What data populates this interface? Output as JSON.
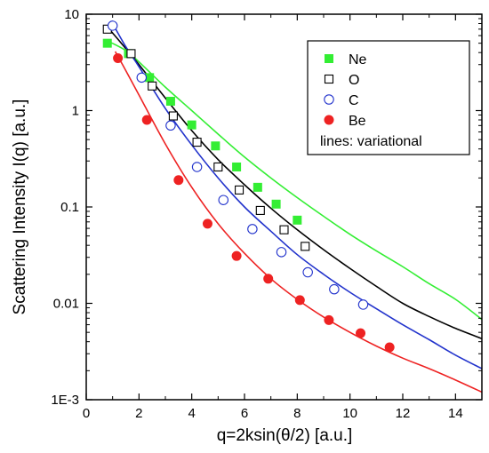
{
  "chart_data": {
    "type": "scatter",
    "xlabel": "q=2ksin(θ/2) [a.u.]",
    "ylabel": "Scattering Intensity I(q)  [a.u.]",
    "xlim": [
      0,
      15
    ],
    "ylim": [
      0.001,
      10
    ],
    "yscale": "log",
    "grid": false,
    "legend_position": "top-right",
    "x_ticks": [
      {
        "value": 0,
        "label": "0"
      },
      {
        "value": 2,
        "label": "2"
      },
      {
        "value": 4,
        "label": "4"
      },
      {
        "value": 6,
        "label": "6"
      },
      {
        "value": 8,
        "label": "8"
      },
      {
        "value": 10,
        "label": "10"
      },
      {
        "value": 12,
        "label": "12"
      },
      {
        "value": 14,
        "label": "14"
      }
    ],
    "y_ticks": [
      {
        "value": 0.001,
        "label": "1E-3"
      },
      {
        "value": 0.01,
        "label": "0.01"
      },
      {
        "value": 0.1,
        "label": "0.1"
      },
      {
        "value": 1,
        "label": "1"
      },
      {
        "value": 10,
        "label": "10"
      }
    ],
    "legend_note": "lines: variational",
    "series": [
      {
        "name": "Ne",
        "marker": "filled-square",
        "color": "#33ee33",
        "points": [
          [
            0.8,
            5.0
          ],
          [
            1.6,
            3.9
          ],
          [
            2.4,
            2.2
          ],
          [
            3.2,
            1.25
          ],
          [
            4.0,
            0.71
          ],
          [
            4.9,
            0.43
          ],
          [
            5.7,
            0.26
          ],
          [
            6.5,
            0.16
          ],
          [
            7.2,
            0.107
          ],
          [
            8.0,
            0.073
          ]
        ],
        "curve": [
          [
            0.8,
            5.3
          ],
          [
            1.5,
            4.2
          ],
          [
            2,
            3.2
          ],
          [
            3,
            1.75
          ],
          [
            4,
            1.0
          ],
          [
            5,
            0.57
          ],
          [
            6,
            0.33
          ],
          [
            7,
            0.2
          ],
          [
            8,
            0.125
          ],
          [
            9,
            0.08
          ],
          [
            10,
            0.052
          ],
          [
            11,
            0.035
          ],
          [
            12,
            0.024
          ],
          [
            13,
            0.016
          ],
          [
            14,
            0.011
          ],
          [
            15,
            0.0068
          ]
        ]
      },
      {
        "name": "O",
        "marker": "open-square",
        "color": "#000000",
        "points": [
          [
            0.8,
            7.0
          ],
          [
            1.7,
            3.9
          ],
          [
            2.5,
            1.8
          ],
          [
            3.3,
            0.88
          ],
          [
            4.2,
            0.47
          ],
          [
            5.0,
            0.26
          ],
          [
            5.8,
            0.15
          ],
          [
            6.6,
            0.092
          ],
          [
            7.5,
            0.058
          ],
          [
            8.3,
            0.039
          ]
        ],
        "curve": [
          [
            0.8,
            7.4
          ],
          [
            1.5,
            4.4
          ],
          [
            2,
            3.0
          ],
          [
            3,
            1.35
          ],
          [
            4,
            0.62
          ],
          [
            5,
            0.31
          ],
          [
            6,
            0.17
          ],
          [
            7,
            0.097
          ],
          [
            8,
            0.058
          ],
          [
            9,
            0.036
          ],
          [
            10,
            0.023
          ],
          [
            11,
            0.015
          ],
          [
            12,
            0.01
          ],
          [
            13,
            0.0073
          ],
          [
            14,
            0.0055
          ],
          [
            15,
            0.0043
          ]
        ]
      },
      {
        "name": "C",
        "marker": "open-circle",
        "color": "#2233cc",
        "points": [
          [
            1.0,
            7.6
          ],
          [
            2.1,
            2.2
          ],
          [
            3.2,
            0.7
          ],
          [
            4.2,
            0.26
          ],
          [
            5.2,
            0.118
          ],
          [
            6.3,
            0.059
          ],
          [
            7.4,
            0.034
          ],
          [
            8.4,
            0.021
          ],
          [
            9.4,
            0.014
          ],
          [
            10.5,
            0.0097
          ]
        ],
        "curve": [
          [
            1.0,
            8.0
          ],
          [
            1.5,
            4.6
          ],
          [
            2,
            2.85
          ],
          [
            3,
            1.05
          ],
          [
            4,
            0.44
          ],
          [
            5,
            0.2
          ],
          [
            6,
            0.1
          ],
          [
            7,
            0.056
          ],
          [
            8,
            0.032
          ],
          [
            9,
            0.02
          ],
          [
            10,
            0.013
          ],
          [
            11,
            0.0088
          ],
          [
            12,
            0.006
          ],
          [
            13,
            0.0042
          ],
          [
            14,
            0.0029
          ],
          [
            15,
            0.0021
          ]
        ]
      },
      {
        "name": "Be",
        "marker": "filled-circle",
        "color": "#ee2222",
        "points": [
          [
            1.2,
            3.5
          ],
          [
            2.3,
            0.8
          ],
          [
            3.5,
            0.19
          ],
          [
            4.6,
            0.067
          ],
          [
            5.7,
            0.031
          ],
          [
            6.9,
            0.018
          ],
          [
            8.1,
            0.0108
          ],
          [
            9.2,
            0.0067
          ],
          [
            10.4,
            0.0049
          ],
          [
            11.5,
            0.0035
          ]
        ],
        "curve": [
          [
            1.1,
            4.1
          ],
          [
            1.5,
            2.6
          ],
          [
            2,
            1.45
          ],
          [
            3,
            0.45
          ],
          [
            4,
            0.16
          ],
          [
            5,
            0.067
          ],
          [
            6,
            0.033
          ],
          [
            7,
            0.018
          ],
          [
            8,
            0.011
          ],
          [
            9,
            0.0072
          ],
          [
            10,
            0.005
          ],
          [
            11,
            0.0036
          ],
          [
            12,
            0.0027
          ],
          [
            13,
            0.0021
          ],
          [
            14,
            0.0016
          ],
          [
            15,
            0.0012
          ]
        ]
      }
    ]
  }
}
